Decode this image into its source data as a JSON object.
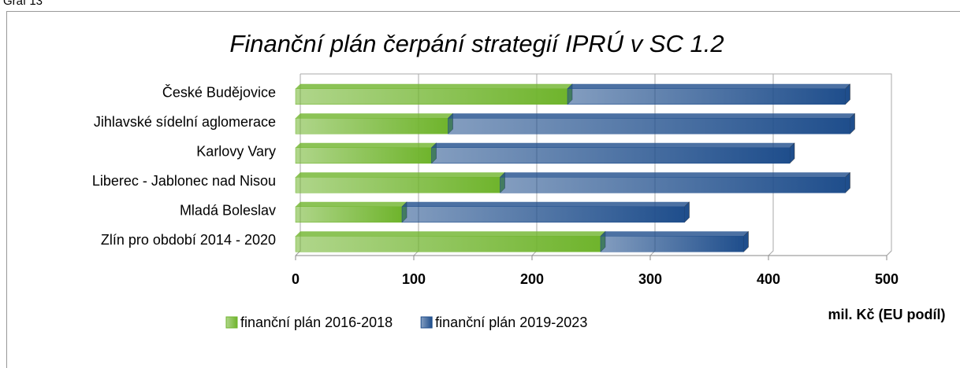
{
  "caption": "Graf 13",
  "chart_data": {
    "type": "stacked-bar-horizontal",
    "title": "Finanční plán čerpání strategií IPRÚ v SC 1.2",
    "x_label": "mil. Kč (EU podíl)",
    "categories": [
      "České Budějovice",
      "Jihlavské sídelní aglomerace",
      "Karlovy Vary",
      "Liberec - Jablonec nad Nisou",
      "Mladá Boleslav",
      "Zlín pro období 2014 - 2020"
    ],
    "series": [
      {
        "name": "finanční plán 2016-2018",
        "color": "#6fb42c",
        "values": [
          230,
          129,
          115,
          173,
          90,
          258
        ]
      },
      {
        "name": "finanční plán 2019-2023",
        "color": "#1f4e8c",
        "values": [
          235,
          340,
          303,
          292,
          239,
          121
        ]
      }
    ],
    "xlim": [
      0,
      500
    ],
    "xticks": [
      0,
      100,
      200,
      300,
      400,
      500
    ],
    "grid": true,
    "legend": "bottom"
  }
}
